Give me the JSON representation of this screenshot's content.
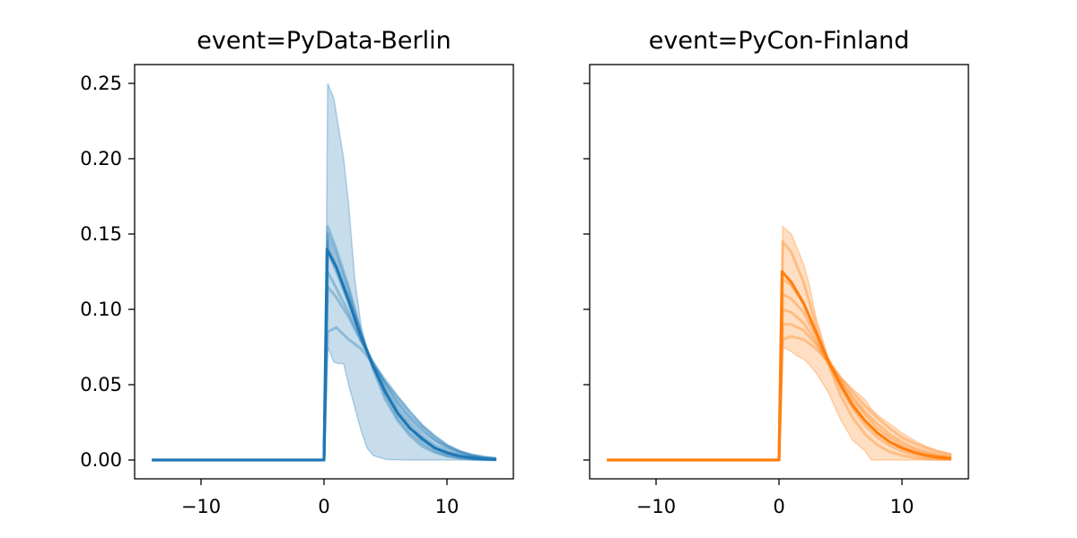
{
  "chart_data": [
    {
      "type": "line",
      "title": "event=PyData-Berlin",
      "xlabel": "",
      "ylabel": "",
      "xlim": [
        -15.4,
        15.4
      ],
      "ylim": [
        -0.0125,
        0.2625
      ],
      "xticks": [
        -10,
        0,
        10
      ],
      "xtick_labels": [
        "−10",
        "0",
        "10"
      ],
      "yticks": [
        0.0,
        0.05,
        0.1,
        0.15,
        0.2,
        0.25
      ],
      "ytick_labels": [
        "0.00",
        "0.05",
        "0.10",
        "0.15",
        "0.20",
        "0.25"
      ],
      "grid": false,
      "color": "#1f77b4",
      "band": {
        "x": [
          -14,
          0,
          0.05,
          0.3,
          0.8,
          1.2,
          1.6,
          2.0,
          2.5,
          3.0,
          3.5,
          4.0,
          5.0,
          6.0,
          7.0,
          8.0,
          9.0,
          10.0,
          11.0,
          12.0,
          13.0,
          14.0
        ],
        "upper": [
          0.0,
          0.0,
          0.0,
          0.25,
          0.24,
          0.22,
          0.2,
          0.17,
          0.12,
          0.09,
          0.072,
          0.063,
          0.052,
          0.042,
          0.032,
          0.023,
          0.016,
          0.01,
          0.006,
          0.003,
          0.0015,
          0.0007
        ],
        "lower": [
          0.0,
          0.0,
          0.0,
          0.075,
          0.065,
          0.064,
          0.064,
          0.05,
          0.035,
          0.02,
          0.008,
          0.003,
          0.0005,
          0.0001,
          0.0,
          0.0,
          0.0,
          0.0,
          0.0,
          0.0,
          0.0,
          0.0
        ]
      },
      "series": [
        {
          "x": [
            -14,
            0,
            0.3,
            1,
            2,
            3,
            4,
            5,
            6,
            7,
            8,
            9,
            10,
            11,
            12,
            13,
            14
          ],
          "values": [
            0,
            0,
            0.155,
            0.14,
            0.115,
            0.085,
            0.06,
            0.04,
            0.026,
            0.016,
            0.009,
            0.005,
            0.0025,
            0.0012,
            0.0005,
            0.0002,
            0.0001
          ]
        },
        {
          "x": [
            -14,
            0,
            0.3,
            1,
            2,
            3,
            4,
            5,
            6,
            7,
            8,
            9,
            10,
            11,
            12,
            13,
            14
          ],
          "values": [
            0,
            0,
            0.15,
            0.136,
            0.112,
            0.085,
            0.062,
            0.043,
            0.028,
            0.018,
            0.011,
            0.006,
            0.003,
            0.0015,
            0.0007,
            0.0003,
            0.0001
          ]
        },
        {
          "x": [
            -14,
            0,
            0.3,
            1,
            2,
            3,
            4,
            5,
            6,
            7,
            8,
            9,
            10,
            11,
            12,
            13,
            14
          ],
          "values": [
            0,
            0,
            0.145,
            0.13,
            0.108,
            0.083,
            0.062,
            0.045,
            0.031,
            0.021,
            0.013,
            0.008,
            0.0045,
            0.0024,
            0.0012,
            0.0006,
            0.0003
          ]
        },
        {
          "x": [
            -14,
            0,
            0.3,
            1,
            2,
            3,
            4,
            5,
            6,
            7,
            8,
            9,
            10,
            11,
            12,
            13,
            14
          ],
          "values": [
            0,
            0,
            0.138,
            0.125,
            0.104,
            0.082,
            0.063,
            0.047,
            0.034,
            0.024,
            0.016,
            0.01,
            0.006,
            0.0035,
            0.0019,
            0.001,
            0.0005
          ]
        },
        {
          "x": [
            -14,
            0,
            0.3,
            1,
            2,
            3,
            4,
            5,
            6,
            7,
            8,
            9,
            10,
            11,
            12,
            13,
            14
          ],
          "values": [
            0,
            0,
            0.125,
            0.114,
            0.098,
            0.08,
            0.064,
            0.05,
            0.037,
            0.027,
            0.019,
            0.013,
            0.008,
            0.005,
            0.003,
            0.0016,
            0.0008
          ]
        },
        {
          "x": [
            -14,
            0,
            0.3,
            1,
            2,
            3,
            4,
            5,
            6,
            7,
            8,
            9,
            10,
            11,
            12,
            13,
            14
          ],
          "values": [
            0,
            0,
            0.115,
            0.108,
            0.095,
            0.079,
            0.065,
            0.051,
            0.039,
            0.029,
            0.021,
            0.014,
            0.009,
            0.0055,
            0.0032,
            0.0018,
            0.001
          ]
        },
        {
          "x": [
            -14,
            0,
            0.3,
            1,
            2,
            3,
            4,
            5,
            6,
            7,
            8,
            9,
            10,
            11,
            12,
            13,
            14
          ],
          "values": [
            0,
            0,
            0.085,
            0.088,
            0.08,
            0.074,
            0.064,
            0.053,
            0.042,
            0.032,
            0.023,
            0.016,
            0.01,
            0.006,
            0.0035,
            0.002,
            0.001
          ]
        }
      ],
      "mean": {
        "x": [
          -14,
          -0.2,
          0,
          0.25,
          1,
          2,
          3,
          4,
          5,
          6,
          7,
          8,
          9,
          10,
          11,
          12,
          13,
          14
        ],
        "values": [
          0,
          0,
          0,
          0.14,
          0.128,
          0.106,
          0.082,
          0.062,
          0.045,
          0.031,
          0.021,
          0.014,
          0.008,
          0.0048,
          0.0026,
          0.0014,
          0.0007,
          0.0003
        ]
      }
    },
    {
      "type": "line",
      "title": "event=PyCon-Finland",
      "xlabel": "",
      "ylabel": "",
      "xlim": [
        -15.4,
        15.4
      ],
      "ylim": [
        -0.0125,
        0.2625
      ],
      "xticks": [
        -10,
        0,
        10
      ],
      "xtick_labels": [
        "−10",
        "0",
        "10"
      ],
      "yticks": [
        0.0,
        0.05,
        0.1,
        0.15,
        0.2,
        0.25
      ],
      "ytick_labels": [
        "",
        "",
        "",
        "",
        "",
        ""
      ],
      "grid": false,
      "color": "#ff7f0e",
      "band": {
        "x": [
          -14,
          0,
          0.05,
          0.3,
          1.0,
          1.5,
          2.0,
          2.5,
          3.0,
          4.0,
          5.0,
          6.0,
          7.0,
          7.5,
          8.0,
          9.0,
          10.0,
          11.0,
          12.0,
          13.0,
          14.0
        ],
        "upper": [
          0.0,
          0.0,
          0.0,
          0.155,
          0.15,
          0.14,
          0.13,
          0.115,
          0.095,
          0.068,
          0.055,
          0.047,
          0.04,
          0.034,
          0.03,
          0.024,
          0.018,
          0.013,
          0.009,
          0.006,
          0.004
        ],
        "lower": [
          0.0,
          0.0,
          0.0,
          0.075,
          0.072,
          0.069,
          0.067,
          0.063,
          0.058,
          0.045,
          0.027,
          0.013,
          0.006,
          0.0,
          0.0,
          0.0,
          0.0,
          0.0,
          0.0,
          0.0,
          0.0
        ]
      },
      "series": [
        {
          "x": [
            -14,
            0,
            0.3,
            1,
            2,
            3,
            4,
            5,
            6,
            7,
            8,
            9,
            10,
            11,
            12,
            13,
            14
          ],
          "values": [
            0,
            0,
            0.145,
            0.138,
            0.118,
            0.09,
            0.064,
            0.043,
            0.028,
            0.017,
            0.01,
            0.0055,
            0.003,
            0.0015,
            0.0007,
            0.0003,
            0.0001
          ]
        },
        {
          "x": [
            -14,
            0,
            0.3,
            1,
            2,
            3,
            4,
            5,
            6,
            7,
            8,
            9,
            10,
            11,
            12,
            13,
            14
          ],
          "values": [
            0,
            0,
            0.12,
            0.116,
            0.104,
            0.085,
            0.065,
            0.048,
            0.034,
            0.023,
            0.015,
            0.0095,
            0.0058,
            0.0034,
            0.002,
            0.0011,
            0.0006
          ]
        },
        {
          "x": [
            -14,
            0,
            0.3,
            1,
            2,
            3,
            4,
            5,
            6,
            7,
            8,
            9,
            10,
            11,
            12,
            13,
            14
          ],
          "values": [
            0,
            0,
            0.11,
            0.107,
            0.098,
            0.082,
            0.065,
            0.05,
            0.037,
            0.026,
            0.018,
            0.012,
            0.0078,
            0.005,
            0.003,
            0.0018,
            0.001
          ]
        },
        {
          "x": [
            -14,
            0,
            0.3,
            1,
            2,
            3,
            4,
            5,
            6,
            7,
            8,
            9,
            10,
            11,
            12,
            13,
            14
          ],
          "values": [
            0,
            0,
            0.1,
            0.098,
            0.091,
            0.079,
            0.065,
            0.052,
            0.04,
            0.03,
            0.021,
            0.015,
            0.01,
            0.0066,
            0.0042,
            0.0026,
            0.0016
          ]
        },
        {
          "x": [
            -14,
            0,
            0.3,
            1,
            2,
            3,
            4,
            5,
            6,
            7,
            8,
            9,
            10,
            11,
            12,
            13,
            14
          ],
          "values": [
            0,
            0,
            0.09,
            0.09,
            0.086,
            0.077,
            0.065,
            0.053,
            0.042,
            0.032,
            0.024,
            0.017,
            0.012,
            0.008,
            0.0054,
            0.0035,
            0.0022
          ]
        },
        {
          "x": [
            -14,
            0,
            0.3,
            1,
            2,
            3,
            4,
            5,
            6,
            7,
            8,
            9,
            10,
            11,
            12,
            13,
            14
          ],
          "values": [
            0,
            0,
            0.08,
            0.082,
            0.08,
            0.074,
            0.065,
            0.055,
            0.045,
            0.036,
            0.028,
            0.021,
            0.015,
            0.011,
            0.0078,
            0.0054,
            0.0037
          ]
        }
      ],
      "mean": {
        "x": [
          -14,
          -0.2,
          0,
          0.25,
          1,
          2,
          3,
          4,
          5,
          6,
          7,
          8,
          9,
          10,
          11,
          12,
          13,
          14
        ],
        "values": [
          0,
          0,
          0,
          0.125,
          0.118,
          0.104,
          0.085,
          0.066,
          0.05,
          0.036,
          0.026,
          0.018,
          0.012,
          0.008,
          0.005,
          0.003,
          0.0018,
          0.001
        ]
      }
    }
  ]
}
